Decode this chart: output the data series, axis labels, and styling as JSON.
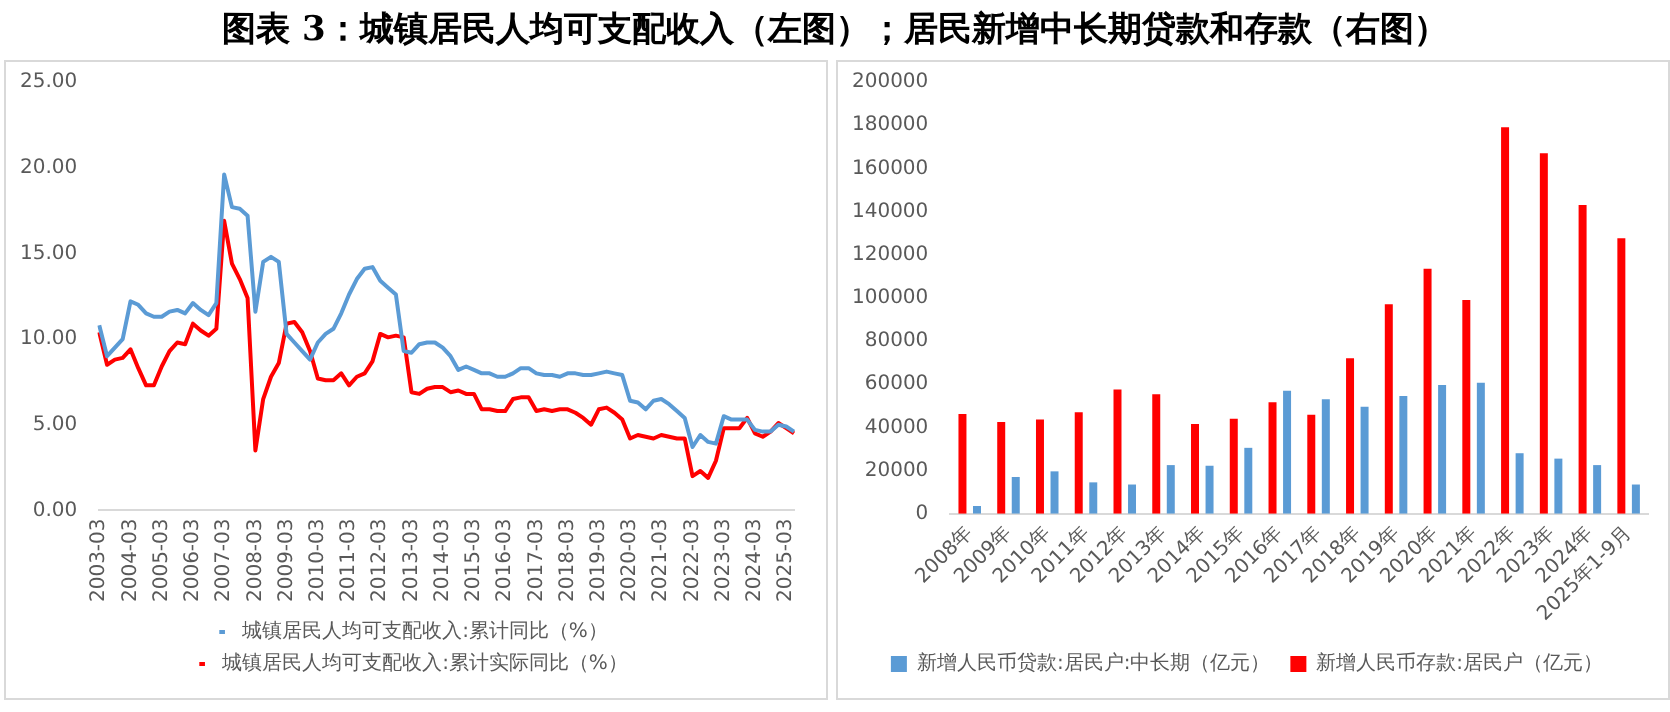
{
  "chart_data": [
    {
      "type": "line",
      "title": "图表 3：城镇居民人均可支配收入（左图）；居民新增中长期贷款和存款（右图）",
      "categories": [
        "2003-03",
        null,
        null,
        null,
        "2004-03",
        null,
        null,
        null,
        "2005-03",
        null,
        null,
        null,
        "2006-03",
        null,
        null,
        null,
        "2007-03",
        null,
        null,
        null,
        "2008-03",
        null,
        null,
        null,
        "2009-03",
        null,
        null,
        null,
        "2010-03",
        null,
        null,
        null,
        "2011-03",
        null,
        null,
        null,
        "2012-03",
        null,
        null,
        null,
        "2013-03",
        null,
        null,
        null,
        "2014-03",
        null,
        null,
        null,
        "2015-03",
        null,
        null,
        null,
        "2016-03",
        null,
        null,
        null,
        "2017-03",
        null,
        null,
        null,
        "2018-03",
        null,
        null,
        null,
        "2019-03",
        null,
        null,
        null,
        "2020-03",
        null,
        null,
        null,
        "2021-03",
        null,
        null,
        null,
        "2022-03",
        null,
        null,
        null,
        "2023-03",
        null,
        null,
        null,
        "2024-03",
        null,
        null,
        null,
        "2025-03",
        null
      ],
      "series": [
        {
          "name": "城镇居民人均可支配收入:累计同比（%）",
          "color": "#5b9bd5",
          "values": [
            10.8,
            9.0,
            9.5,
            10.0,
            12.2,
            12.0,
            11.5,
            11.3,
            11.3,
            11.6,
            11.7,
            11.5,
            12.1,
            11.7,
            11.4,
            12.1,
            19.6,
            17.7,
            17.6,
            17.2,
            11.6,
            14.5,
            14.8,
            14.5,
            10.3,
            9.8,
            9.3,
            8.8,
            9.8,
            10.3,
            10.6,
            11.5,
            12.6,
            13.5,
            14.1,
            14.2,
            13.4,
            13.0,
            12.6,
            9.3,
            9.2,
            9.7,
            9.8,
            9.8,
            9.5,
            9.0,
            8.2,
            8.4,
            8.2,
            8.0,
            8.0,
            7.8,
            7.8,
            8.0,
            8.3,
            8.3,
            8.0,
            7.9,
            7.9,
            7.8,
            8.0,
            8.0,
            7.9,
            7.9,
            8.0,
            8.1,
            8.0,
            7.9,
            6.4,
            6.3,
            5.9,
            6.4,
            6.5,
            6.2,
            5.8,
            5.4,
            3.7,
            4.4,
            4.0,
            3.9,
            5.5,
            5.3,
            5.3,
            5.3,
            4.7,
            4.6,
            4.6,
            5.0,
            4.9,
            4.6
          ]
        },
        {
          "name": "城镇居民人均可支配收入:累计实际同比（%）",
          "color": "#ff0000",
          "values": [
            10.4,
            8.5,
            8.8,
            8.9,
            9.4,
            8.3,
            7.3,
            7.3,
            8.4,
            9.3,
            9.8,
            9.7,
            10.9,
            10.5,
            10.2,
            10.6,
            16.9,
            14.4,
            13.5,
            12.4,
            3.5,
            6.5,
            7.8,
            8.6,
            10.9,
            11.0,
            10.4,
            9.3,
            7.7,
            7.6,
            7.6,
            8.0,
            7.3,
            7.8,
            8.0,
            8.7,
            10.3,
            10.1,
            10.2,
            10.1,
            6.9,
            6.8,
            7.1,
            7.2,
            7.2,
            6.9,
            7.0,
            6.8,
            6.8,
            5.9,
            5.9,
            5.8,
            5.8,
            6.5,
            6.6,
            6.6,
            5.8,
            5.9,
            5.8,
            5.9,
            5.9,
            5.7,
            5.4,
            5.0,
            5.9,
            6.0,
            5.7,
            5.3,
            4.2,
            4.4,
            4.3,
            4.2,
            4.4,
            4.3,
            4.2,
            4.2,
            2.0,
            2.3,
            1.9,
            2.9,
            4.8,
            4.8,
            4.8,
            5.4,
            4.5,
            4.3,
            4.6,
            5.1,
            4.8,
            4.5
          ]
        }
      ],
      "ylim": [
        0,
        25
      ],
      "yticks": [
        {
          "value": 0,
          "label": "0.00"
        },
        {
          "value": 5,
          "label": "5.00"
        },
        {
          "value": 10,
          "label": "10.00"
        },
        {
          "value": 15,
          "label": "15.00"
        },
        {
          "value": 20,
          "label": "20.00"
        },
        {
          "value": 25,
          "label": "25.00"
        }
      ],
      "grid": false,
      "legend": "bottom",
      "marker": "none",
      "line_style": "solid"
    },
    {
      "type": "bar",
      "categories": [
        "2008年",
        "2009年",
        "2010年",
        "2011年",
        "2012年",
        "2013年",
        "2014年",
        "2015年",
        "2016年",
        "2017年",
        "2018年",
        "2019年",
        "2020年",
        "2021年",
        "2022年",
        "2023年",
        "2024年",
        "2025年1-9月"
      ],
      "series": [
        {
          "name": "新增人民币存款:居民户（亿元）",
          "color": "#ff0000",
          "values": [
            46200,
            42500,
            43600,
            47000,
            57500,
            55300,
            41500,
            44000,
            51600,
            45800,
            72000,
            97000,
            113500,
            99000,
            179000,
            167000,
            143000,
            127600
          ]
        },
        {
          "name": "新增人民币贷款:居民户:中长期（亿元）",
          "color": "#5b9bd5",
          "values": [
            3600,
            17000,
            19600,
            14500,
            13500,
            22500,
            22200,
            30500,
            57000,
            53000,
            49500,
            54500,
            59600,
            60700,
            28000,
            25500,
            22500,
            13500
          ]
        }
      ],
      "ylim": [
        0,
        200000
      ],
      "yticks": [
        0,
        20000,
        40000,
        60000,
        80000,
        100000,
        120000,
        140000,
        160000,
        180000,
        200000
      ],
      "grid": false,
      "legend": "bottom"
    }
  ]
}
